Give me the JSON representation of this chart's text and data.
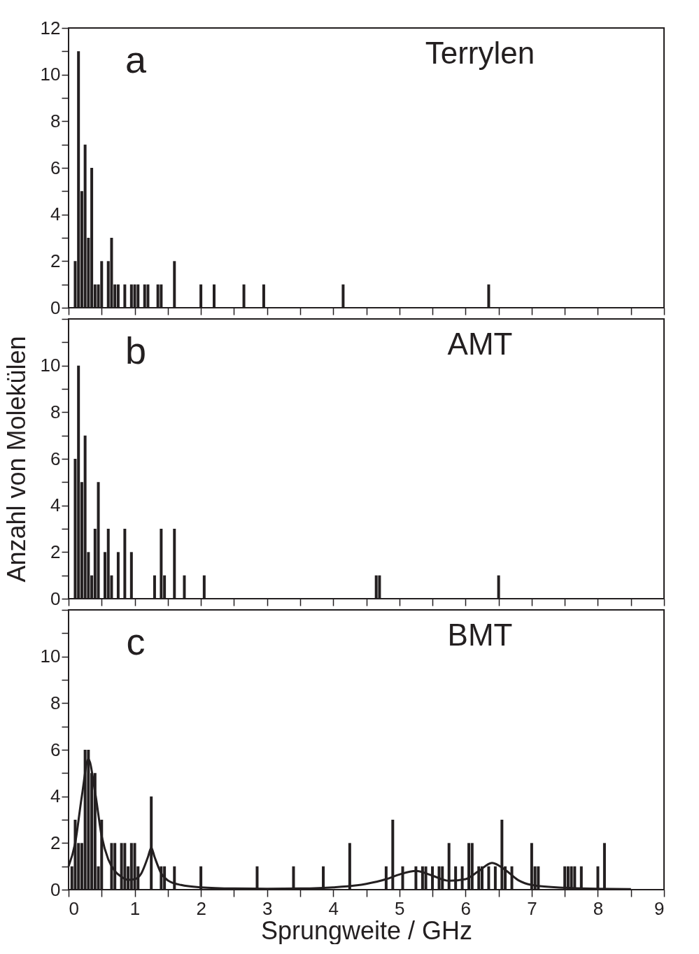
{
  "chart_data": [
    {
      "type": "bar",
      "color": "#231f20",
      "annotations": [
        "a",
        "Terrylen"
      ],
      "grid": false,
      "tick_labels": "y",
      "x": [
        0.1,
        0.15,
        0.2,
        0.25,
        0.3,
        0.35,
        0.4,
        0.45,
        0.5,
        0.6,
        0.65,
        0.7,
        0.75,
        0.85,
        0.95,
        1.0,
        1.05,
        1.15,
        1.2,
        1.35,
        1.4,
        1.6,
        2.0,
        2.2,
        2.65,
        2.95,
        4.15,
        6.35
      ],
      "values": [
        2,
        11,
        5,
        7,
        3,
        6,
        1,
        1,
        2,
        2,
        3,
        1,
        1,
        1,
        1,
        1,
        1,
        1,
        1,
        1,
        1,
        2,
        1,
        1,
        1,
        1,
        1,
        1
      ],
      "xlim": [
        0,
        9
      ],
      "ylim": [
        0,
        12
      ],
      "xticks": [
        0,
        {
          "value": 0.5,
          "label": null
        },
        1,
        {
          "value": 1.5,
          "label": null
        },
        2,
        {
          "value": 2.5,
          "label": null
        },
        3,
        {
          "value": 3.5,
          "label": null
        },
        4,
        {
          "value": 4.5,
          "label": null
        },
        5,
        {
          "value": 5.5,
          "label": null
        },
        6,
        {
          "value": 6.5,
          "label": null
        },
        7,
        {
          "value": 7.5,
          "label": null
        },
        8,
        {
          "value": 8.5,
          "label": null
        },
        9
      ],
      "yticks": [
        0,
        {
          "value": 1,
          "label": null
        },
        2,
        {
          "value": 3,
          "label": null
        },
        4,
        {
          "value": 5,
          "label": null
        },
        6,
        {
          "value": 7,
          "label": null
        },
        8,
        {
          "value": 9,
          "label": null
        },
        10,
        {
          "value": 11,
          "label": null
        },
        12
      ]
    },
    {
      "type": "bar",
      "color": "#231f20",
      "annotations": [
        "b",
        "AMT"
      ],
      "grid": false,
      "tick_labels": "y",
      "ylabel": "Anzahl von Molekülen",
      "x": [
        0.1,
        0.15,
        0.2,
        0.25,
        0.3,
        0.35,
        0.4,
        0.45,
        0.55,
        0.6,
        0.65,
        0.75,
        0.85,
        0.95,
        1.3,
        1.4,
        1.45,
        1.6,
        1.75,
        2.05,
        4.65,
        4.7,
        6.5
      ],
      "values": [
        6,
        10,
        5,
        7,
        2,
        1,
        3,
        5,
        2,
        3,
        1,
        2,
        3,
        2,
        1,
        3,
        1,
        3,
        1,
        1,
        1,
        1,
        1
      ],
      "xlim": [
        0,
        9
      ],
      "ylim": [
        0,
        12
      ],
      "xticks": [
        0,
        {
          "value": 0.5,
          "label": null
        },
        1,
        {
          "value": 1.5,
          "label": null
        },
        2,
        {
          "value": 2.5,
          "label": null
        },
        3,
        {
          "value": 3.5,
          "label": null
        },
        4,
        {
          "value": 4.5,
          "label": null
        },
        5,
        {
          "value": 5.5,
          "label": null
        },
        6,
        {
          "value": 6.5,
          "label": null
        },
        7,
        {
          "value": 7.5,
          "label": null
        },
        8,
        {
          "value": 8.5,
          "label": null
        },
        9
      ],
      "yticks": [
        0,
        {
          "value": 1,
          "label": null
        },
        2,
        {
          "value": 3,
          "label": null
        },
        4,
        {
          "value": 5,
          "label": null
        },
        6,
        {
          "value": 7,
          "label": null
        },
        8,
        {
          "value": 9,
          "label": null
        },
        10,
        {
          "value": 11,
          "label": null
        },
        {
          "value": 12,
          "label": null
        }
      ]
    },
    {
      "type": "bar",
      "annotations": [
        "c",
        "BMT"
      ],
      "grid": false,
      "xlabel": "Sprungweite / GHz",
      "series": [
        {
          "type": "bar",
          "color": "#231f20",
          "x": [
            0.05,
            0.1,
            0.15,
            0.2,
            0.25,
            0.3,
            0.35,
            0.4,
            0.45,
            0.5,
            0.65,
            0.7,
            0.8,
            0.85,
            0.9,
            0.95,
            1.0,
            1.05,
            1.25,
            1.4,
            1.45,
            1.6,
            2.0,
            2.85,
            3.4,
            3.85,
            4.25,
            4.8,
            4.9,
            5.05,
            5.25,
            5.35,
            5.4,
            5.5,
            5.6,
            5.65,
            5.75,
            5.85,
            5.95,
            6.05,
            6.1,
            6.2,
            6.25,
            6.35,
            6.45,
            6.55,
            6.6,
            6.7,
            7.0,
            7.05,
            7.1,
            7.5,
            7.55,
            7.6,
            7.65,
            7.75,
            8.0,
            8.1
          ],
          "values": [
            1,
            3,
            2,
            2,
            6,
            6,
            5,
            5,
            1,
            3,
            2,
            2,
            2,
            2,
            1,
            2,
            2,
            1,
            4,
            1,
            1,
            1,
            1,
            1,
            1,
            1,
            2,
            1,
            3,
            1,
            1,
            1,
            1,
            1,
            1,
            1,
            2,
            1,
            1,
            2,
            2,
            1,
            1,
            1,
            1,
            3,
            1,
            1,
            2,
            1,
            1,
            1,
            1,
            1,
            1,
            1,
            1,
            2
          ]
        },
        {
          "type": "line",
          "color": "#231f20",
          "x": [
            0,
            0.1,
            0.2,
            0.3,
            0.4,
            0.5,
            0.6,
            0.7,
            0.8,
            0.9,
            1.0,
            1.1,
            1.2,
            1.25,
            1.3,
            1.4,
            1.5,
            1.7,
            2.0,
            2.5,
            3.0,
            3.5,
            4.0,
            4.5,
            4.8,
            5.0,
            5.25,
            5.5,
            5.75,
            6.0,
            6.2,
            6.4,
            6.6,
            6.8,
            7.0,
            7.5,
            8.0,
            8.5
          ],
          "values": [
            1.0,
            2.0,
            4.0,
            5.6,
            4.2,
            2.3,
            1.3,
            0.8,
            0.55,
            0.42,
            0.45,
            0.7,
            1.4,
            1.8,
            1.4,
            0.7,
            0.4,
            0.2,
            0.1,
            0.05,
            0.04,
            0.05,
            0.1,
            0.25,
            0.45,
            0.65,
            0.8,
            0.6,
            0.38,
            0.45,
            0.8,
            1.15,
            0.85,
            0.4,
            0.2,
            0.08,
            0.04,
            0.02
          ]
        }
      ],
      "xlim": [
        0,
        9
      ],
      "ylim": [
        0,
        12
      ],
      "xticks": [
        0,
        {
          "value": 0.5,
          "label": null
        },
        1,
        {
          "value": 1.5,
          "label": null
        },
        2,
        {
          "value": 2.5,
          "label": null
        },
        3,
        {
          "value": 3.5,
          "label": null
        },
        4,
        {
          "value": 4.5,
          "label": null
        },
        5,
        {
          "value": 5.5,
          "label": null
        },
        6,
        {
          "value": 6.5,
          "label": null
        },
        7,
        {
          "value": 7.5,
          "label": null
        },
        8,
        {
          "value": 8.5,
          "label": null
        },
        9
      ],
      "yticks": [
        0,
        {
          "value": 1,
          "label": null
        },
        2,
        {
          "value": 3,
          "label": null
        },
        4,
        {
          "value": 5,
          "label": null
        },
        6,
        {
          "value": 7,
          "label": null
        },
        8,
        {
          "value": 9,
          "label": null
        },
        10,
        {
          "value": 11,
          "label": null
        },
        {
          "value": 12,
          "label": null
        }
      ]
    }
  ]
}
